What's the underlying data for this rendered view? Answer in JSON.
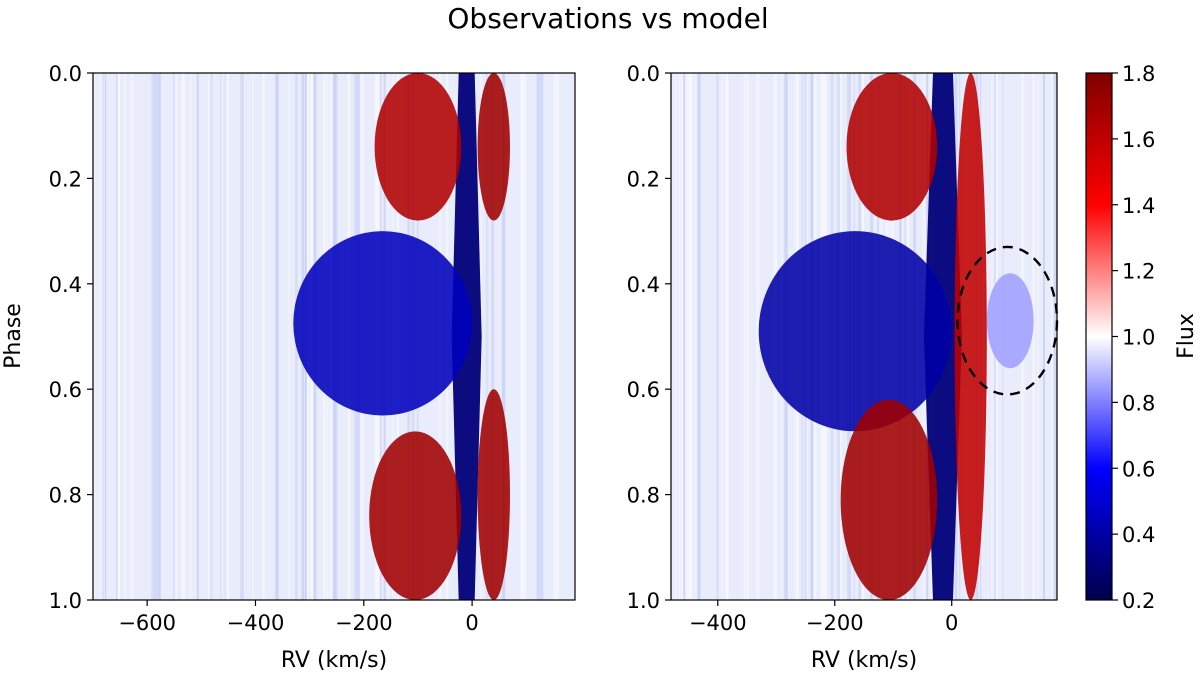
{
  "title": "Observations vs model",
  "colorbar": {
    "label": "Flux",
    "range": [
      0.2,
      1.8
    ],
    "ticks": [
      "0.2",
      "0.4",
      "0.6",
      "0.8",
      "1.0",
      "1.2",
      "1.4",
      "1.6",
      "1.8"
    ],
    "colormap": "seismic",
    "colors": {
      "low": "#00004c",
      "mid_low": "#0000ff",
      "center": "#ffffff",
      "mid_high": "#ff0000",
      "high": "#800000"
    }
  },
  "chart_data": [
    {
      "type": "heatmap",
      "panel": "observations",
      "xlabel": "RV (km/s)",
      "ylabel": "Phase",
      "xlim": [
        -700,
        190
      ],
      "ylim": [
        1.0,
        0.0
      ],
      "xticks": [
        "−600",
        "−400",
        "−200",
        "0"
      ],
      "xtick_values": [
        -600,
        -400,
        -200,
        0
      ],
      "yticks": [
        "0.0",
        "0.2",
        "0.4",
        "0.6",
        "0.8",
        "1.0"
      ],
      "ytick_values": [
        0.0,
        0.2,
        0.4,
        0.6,
        0.8,
        1.0
      ],
      "features": [
        {
          "name": "central absorption trough",
          "rv": -10,
          "phase_range": [
            0.0,
            1.0
          ],
          "flux": 0.3
        },
        {
          "name": "blueshifted absorption",
          "rv_range": [
            -330,
            0
          ],
          "phase_range": [
            0.3,
            0.65
          ],
          "flux": 0.45
        },
        {
          "name": "blue emission lobe",
          "rv_range": [
            -180,
            -20
          ],
          "phase_range": [
            0.0,
            0.28
          ],
          "flux": 1.65
        },
        {
          "name": "red emission lobe",
          "rv_range": [
            10,
            70
          ],
          "phase_range": [
            0.0,
            0.28
          ],
          "flux": 1.7
        },
        {
          "name": "blue emission lobe",
          "rv_range": [
            -190,
            -20
          ],
          "phase_range": [
            0.68,
            1.0
          ],
          "flux": 1.7
        },
        {
          "name": "red emission lobe",
          "rv_range": [
            10,
            70
          ],
          "phase_range": [
            0.6,
            1.0
          ],
          "flux": 1.7
        }
      ]
    },
    {
      "type": "heatmap",
      "panel": "model",
      "xlabel": "RV (km/s)",
      "ylabel": "",
      "xlim": [
        -480,
        180
      ],
      "ylim": [
        1.0,
        0.0
      ],
      "xticks": [
        "−400",
        "−200",
        "0"
      ],
      "xtick_values": [
        -400,
        -200,
        0
      ],
      "yticks": [
        "0.0",
        "0.2",
        "0.4",
        "0.6",
        "0.8",
        "1.0"
      ],
      "ytick_values": [
        0.0,
        0.2,
        0.4,
        0.6,
        0.8,
        1.0
      ],
      "features": [
        {
          "name": "central absorption trough",
          "rv": -15,
          "phase_range": [
            0.0,
            1.0
          ],
          "flux": 0.3
        },
        {
          "name": "blueshifted absorption",
          "rv_range": [
            -330,
            0
          ],
          "phase_range": [
            0.3,
            0.68
          ],
          "flux": 0.4
        },
        {
          "name": "blue emission lobe",
          "rv_range": [
            -180,
            -25
          ],
          "phase_range": [
            0.0,
            0.28
          ],
          "flux": 1.65
        },
        {
          "name": "red emission lobe",
          "rv_range": [
            5,
            60
          ],
          "phase_range": [
            0.0,
            1.0
          ],
          "flux": 1.6
        },
        {
          "name": "blue emission lobe",
          "rv_range": [
            -190,
            -25
          ],
          "phase_range": [
            0.62,
            1.0
          ],
          "flux": 1.7
        },
        {
          "name": "redshifted absorption",
          "rv_range": [
            60,
            140
          ],
          "phase_range": [
            0.38,
            0.56
          ],
          "flux": 0.85
        }
      ],
      "annotation": {
        "shape": "dashed ellipse",
        "center_rv": 95,
        "center_phase": 0.47,
        "rv_halfwidth": 85,
        "phase_halfheight": 0.14
      }
    }
  ]
}
